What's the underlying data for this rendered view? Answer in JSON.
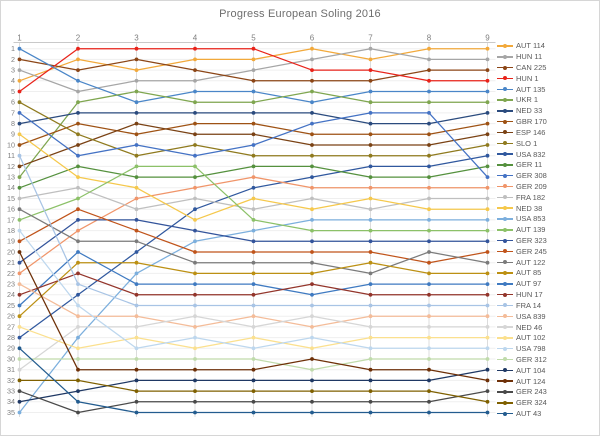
{
  "chart_data": {
    "type": "line",
    "subtype": "bump-rank-progression",
    "title": "Progress European Soling 2016",
    "xlabel": "",
    "ylabel": "",
    "x": [
      1,
      2,
      3,
      4,
      5,
      6,
      7,
      8,
      9
    ],
    "x_ticks": [
      "1",
      "2",
      "3",
      "4",
      "5",
      "6",
      "7",
      "8",
      "9"
    ],
    "y_ticks": [
      "1",
      "2",
      "3",
      "4",
      "5",
      "6",
      "7",
      "8",
      "9",
      "10",
      "11",
      "12",
      "13",
      "14",
      "15",
      "16",
      "17",
      "18",
      "19",
      "20",
      "21",
      "22",
      "23",
      "24",
      "25",
      "26",
      "27",
      "28",
      "29",
      "30",
      "31",
      "32",
      "33",
      "34",
      "35"
    ],
    "ylim": [
      1,
      35
    ],
    "y_inverted": true,
    "grid": true,
    "legend_position": "right",
    "series": [
      {
        "name": "AUT 114",
        "color": "#F2A93B",
        "values": [
          4,
          2,
          3,
          2,
          2,
          1,
          2,
          1,
          1
        ]
      },
      {
        "name": "HUN 11",
        "color": "#A6A6A6",
        "values": [
          3,
          5,
          4,
          4,
          3,
          2,
          1,
          2,
          2
        ]
      },
      {
        "name": "CAN 225",
        "color": "#8C4617",
        "values": [
          2,
          3,
          2,
          3,
          4,
          4,
          4,
          3,
          3
        ]
      },
      {
        "name": "HUN 1",
        "color": "#E8231A",
        "values": [
          5,
          1,
          1,
          1,
          1,
          3,
          3,
          4,
          4
        ]
      },
      {
        "name": "AUT 135",
        "color": "#4A86C8",
        "values": [
          1,
          4,
          6,
          5,
          5,
          6,
          5,
          5,
          5
        ]
      },
      {
        "name": "UKR 1",
        "color": "#7FA650",
        "values": [
          13,
          6,
          5,
          6,
          6,
          5,
          6,
          6,
          6
        ]
      },
      {
        "name": "NED 33",
        "color": "#2B4B7E",
        "values": [
          8,
          7,
          7,
          7,
          7,
          7,
          8,
          8,
          7
        ]
      },
      {
        "name": "GBR 170",
        "color": "#9E5214",
        "values": [
          10,
          8,
          9,
          8,
          8,
          9,
          9,
          9,
          8
        ]
      },
      {
        "name": "ESP 146",
        "color": "#7A4214",
        "values": [
          12,
          10,
          8,
          9,
          9,
          10,
          10,
          10,
          9
        ]
      },
      {
        "name": "SLO 1",
        "color": "#8F7A1E",
        "values": [
          6,
          9,
          11,
          10,
          11,
          11,
          11,
          11,
          10
        ]
      },
      {
        "name": "USA 832",
        "color": "#30589E",
        "values": [
          28,
          24,
          20,
          16,
          14,
          13,
          12,
          12,
          11
        ]
      },
      {
        "name": "GER 11",
        "color": "#55913E",
        "values": [
          14,
          12,
          13,
          13,
          12,
          12,
          13,
          13,
          12
        ]
      },
      {
        "name": "GER 308",
        "color": "#4472C4",
        "values": [
          7,
          11,
          10,
          11,
          10,
          8,
          7,
          7,
          13
        ]
      },
      {
        "name": "GER 209",
        "color": "#F0956A",
        "values": [
          22,
          18,
          15,
          14,
          13,
          14,
          14,
          14,
          14
        ]
      },
      {
        "name": "FRA 182",
        "color": "#BFBFBF",
        "values": [
          15,
          14,
          16,
          15,
          16,
          15,
          16,
          15,
          15
        ]
      },
      {
        "name": "NED 38",
        "color": "#F5C84C",
        "values": [
          9,
          13,
          14,
          17,
          15,
          16,
          15,
          16,
          16
        ]
      },
      {
        "name": "USA 853",
        "color": "#7CAFDD",
        "values": [
          35,
          28,
          22,
          19,
          18,
          17,
          17,
          17,
          17
        ]
      },
      {
        "name": "AUT 139",
        "color": "#8CC168",
        "values": [
          17,
          15,
          12,
          12,
          17,
          18,
          18,
          18,
          18
        ]
      },
      {
        "name": "GER 323",
        "color": "#33549B",
        "values": [
          21,
          17,
          17,
          18,
          19,
          19,
          19,
          19,
          19
        ]
      },
      {
        "name": "GER 245",
        "color": "#C0541B",
        "values": [
          19,
          16,
          18,
          20,
          20,
          20,
          20,
          21,
          20
        ]
      },
      {
        "name": "AUT 122",
        "color": "#7B7B7B",
        "values": [
          16,
          19,
          19,
          21,
          21,
          21,
          22,
          20,
          21
        ]
      },
      {
        "name": "AUT 85",
        "color": "#BC9013",
        "values": [
          26,
          21,
          21,
          22,
          22,
          22,
          21,
          22,
          22
        ]
      },
      {
        "name": "AUT 97",
        "color": "#3F7AC1",
        "values": [
          25,
          20,
          23,
          23,
          23,
          24,
          23,
          23,
          23
        ]
      },
      {
        "name": "HUN 17",
        "color": "#93352B",
        "values": [
          24,
          22,
          24,
          24,
          24,
          23,
          24,
          24,
          24
        ]
      },
      {
        "name": "FRA 14",
        "color": "#A8C4E5",
        "values": [
          11,
          23,
          25,
          25,
          25,
          25,
          25,
          25,
          25
        ]
      },
      {
        "name": "USA 839",
        "color": "#F4BC99",
        "values": [
          23,
          26,
          26,
          27,
          26,
          27,
          26,
          26,
          26
        ]
      },
      {
        "name": "NED 46",
        "color": "#D6D6D6",
        "values": [
          31,
          27,
          27,
          26,
          27,
          26,
          27,
          27,
          27
        ]
      },
      {
        "name": "AUT 102",
        "color": "#FBE08E",
        "values": [
          27,
          29,
          28,
          29,
          28,
          29,
          28,
          28,
          28
        ]
      },
      {
        "name": "USA 798",
        "color": "#BDD7EE",
        "values": [
          18,
          25,
          29,
          28,
          29,
          28,
          29,
          29,
          29
        ]
      },
      {
        "name": "GER 312",
        "color": "#C0DBAB",
        "values": [
          30,
          30,
          30,
          30,
          30,
          31,
          30,
          30,
          30
        ]
      },
      {
        "name": "AUT 104",
        "color": "#1F3864",
        "values": [
          34,
          33,
          32,
          32,
          32,
          32,
          32,
          32,
          31
        ]
      },
      {
        "name": "AUT 124",
        "color": "#6E3008",
        "values": [
          20,
          31,
          31,
          31,
          31,
          30,
          31,
          31,
          32
        ]
      },
      {
        "name": "GER 243",
        "color": "#4A4A4A",
        "values": [
          33,
          35,
          34,
          34,
          34,
          34,
          34,
          34,
          33
        ]
      },
      {
        "name": "GER 324",
        "color": "#7F6000",
        "values": [
          32,
          32,
          33,
          33,
          33,
          33,
          33,
          33,
          34
        ]
      },
      {
        "name": "AUT 43",
        "color": "#235C8F",
        "values": [
          29,
          34,
          35,
          35,
          35,
          35,
          35,
          35,
          35
        ]
      }
    ],
    "style": {
      "title_color": "#6e6e6e",
      "tick_color": "#7f7f7f",
      "grid_h_color": "#efefef",
      "grid_v_color": "#dcdcdc",
      "plot_top_border_color": "#c9c9c9",
      "background": "#ffffff",
      "frame_color": "#d6d6d6",
      "legend_text_color": "#595959"
    }
  }
}
